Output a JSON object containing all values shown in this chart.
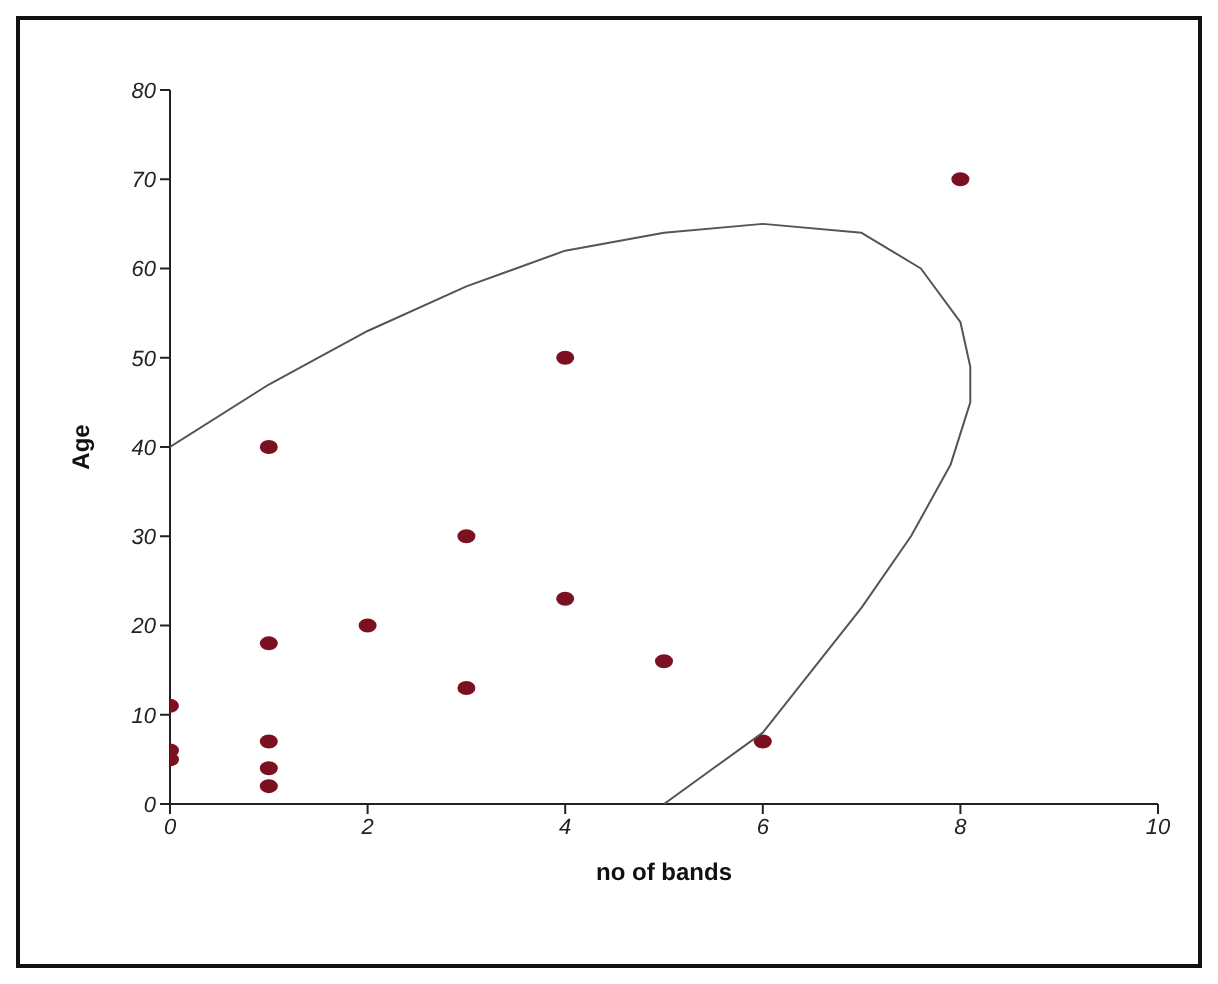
{
  "chart_data": {
    "type": "scatter",
    "xlabel": "no of bands",
    "ylabel": "Age",
    "xlim": [
      0,
      10
    ],
    "xticks": [
      0,
      2,
      4,
      6,
      8,
      10
    ],
    "ylim": [
      0,
      80
    ],
    "yticks": [
      0,
      10,
      20,
      30,
      40,
      50,
      60,
      70,
      80
    ],
    "grid": false,
    "legend": false,
    "marker": "circle",
    "series": [
      {
        "type": "scatter",
        "color": "#7a1020",
        "x": [
          0,
          0,
          0,
          1,
          1,
          1,
          1,
          1,
          2,
          3,
          3,
          4,
          4,
          5,
          6,
          8
        ],
        "values": [
          11,
          6,
          5,
          40,
          18,
          7,
          4,
          2,
          20,
          30,
          13,
          50,
          23,
          16,
          7,
          70
        ]
      },
      {
        "type": "line",
        "color": "#555555",
        "marker": "none",
        "line_style": "solid",
        "x": [
          0,
          1,
          2,
          3,
          4,
          5,
          6,
          7,
          7.6,
          8,
          8.1,
          8.1,
          7.9,
          7.5,
          7,
          6.5,
          6,
          5.5,
          5
        ],
        "values": [
          40,
          47,
          53,
          58,
          62,
          64,
          65,
          64,
          60,
          54,
          49,
          45,
          38,
          30,
          22,
          15,
          8,
          4,
          0
        ]
      }
    ]
  }
}
